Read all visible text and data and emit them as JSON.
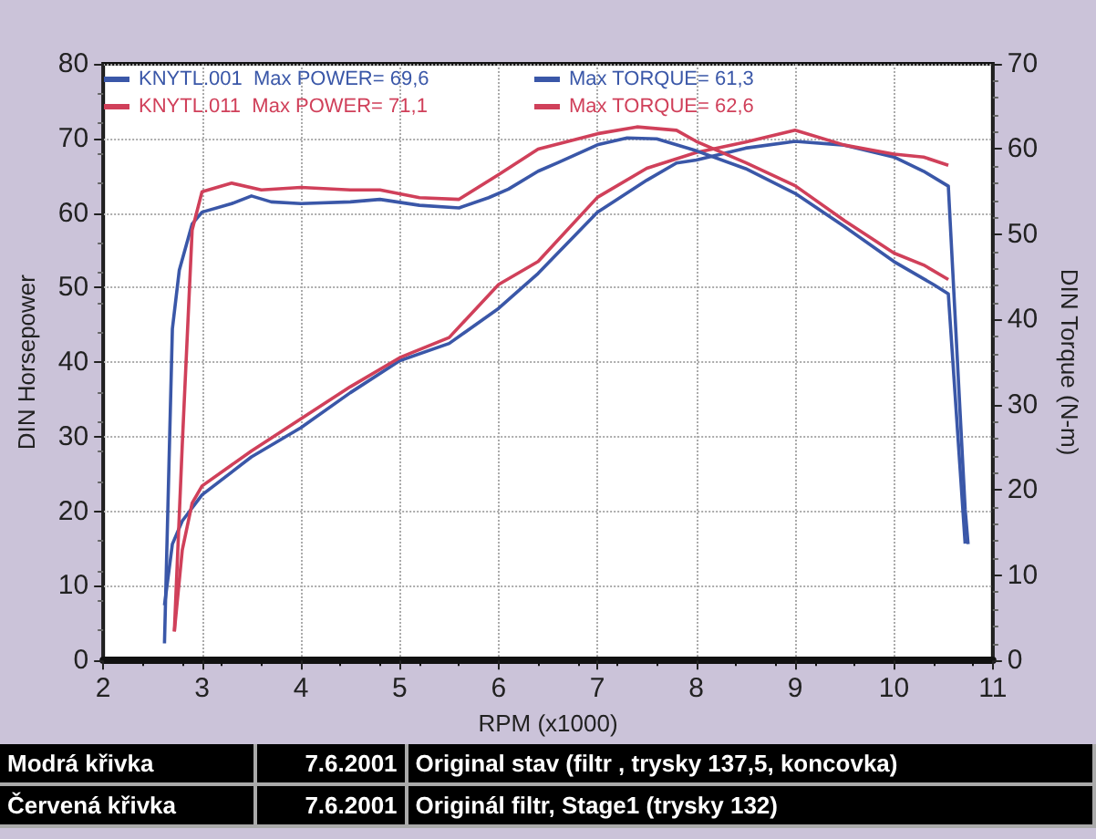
{
  "chart_data": {
    "type": "line",
    "xlabel": "RPM (x1000)",
    "ylabel": "DIN Horsepower",
    "y2label": "DIN Torque (N-m)",
    "xlim": [
      2,
      11
    ],
    "xticks": [
      2,
      3,
      4,
      5,
      6,
      7,
      8,
      9,
      10,
      11
    ],
    "ylim": [
      0,
      80
    ],
    "yticks": [
      0,
      10,
      20,
      30,
      40,
      50,
      60,
      70,
      80
    ],
    "y2lim": [
      0,
      70
    ],
    "y2ticks": [
      0,
      10,
      20,
      30,
      40,
      50,
      60,
      70
    ],
    "grid": true,
    "marker": "none",
    "line_style": "solid",
    "legend": "top",
    "series": [
      {
        "name": "KNYTL.001  Max POWER= 69,6",
        "color": "#3a57a8",
        "x": [
          2.62,
          2.7,
          2.8,
          3.0,
          3.5,
          4.0,
          4.5,
          5.0,
          5.5,
          6.0,
          6.4,
          7.0,
          7.5,
          7.8,
          8.0,
          8.5,
          9.0,
          9.5,
          10.0,
          10.3,
          10.55,
          10.72,
          10.75
        ],
        "values": [
          7.4,
          15.6,
          18.7,
          22.2,
          27.3,
          31.2,
          35.9,
          40.2,
          42.5,
          47.2,
          51.9,
          60.1,
          64.4,
          66.7,
          67.1,
          68.7,
          69.6,
          69.1,
          67.5,
          65.6,
          63.6,
          20.3,
          15.6
        ]
      },
      {
        "name": "KNYTL.011  Max POWER= 71,1",
        "color": "#d0405a",
        "x": [
          2.72,
          2.8,
          2.9,
          3.0,
          3.5,
          4.0,
          4.5,
          5.0,
          5.5,
          6.0,
          6.4,
          7.0,
          7.5,
          8.0,
          8.5,
          9.0,
          9.5,
          10.0,
          10.3,
          10.55
        ],
        "values": [
          3.9,
          14.8,
          21.1,
          23.4,
          28.1,
          32.4,
          36.7,
          40.6,
          43.3,
          50.4,
          53.5,
          62.1,
          66.0,
          68.1,
          69.5,
          71.1,
          69.1,
          67.9,
          67.5,
          66.4
        ]
      },
      {
        "name": "Max TORQUE= 61,3",
        "color": "#3a57a8",
        "axis": "y2",
        "x": [
          2.62,
          2.7,
          2.77,
          2.9,
          3.0,
          3.3,
          3.5,
          3.7,
          4.0,
          4.5,
          4.8,
          5.2,
          5.6,
          5.9,
          6.1,
          6.4,
          6.6,
          7.0,
          7.3,
          7.6,
          8.0,
          8.5,
          9.0,
          9.5,
          10.0,
          10.4,
          10.55,
          10.72
        ],
        "values": [
          2.0,
          38.9,
          45.8,
          51.2,
          52.6,
          53.6,
          54.5,
          53.8,
          53.6,
          53.8,
          54.1,
          53.4,
          53.1,
          54.3,
          55.3,
          57.4,
          58.4,
          60.5,
          61.3,
          61.2,
          59.8,
          57.7,
          54.8,
          50.9,
          46.8,
          44.1,
          43.0,
          13.7
        ]
      },
      {
        "name": "Max TORQUE= 62,6",
        "color": "#d0405a",
        "axis": "y2",
        "x": [
          2.72,
          2.8,
          2.9,
          3.0,
          3.3,
          3.6,
          4.0,
          4.5,
          4.8,
          5.2,
          5.6,
          6.0,
          6.4,
          7.0,
          7.4,
          7.8,
          8.0,
          8.5,
          9.0,
          9.5,
          10.0,
          10.3,
          10.55
        ],
        "values": [
          3.4,
          25.3,
          50.5,
          55.0,
          56.0,
          55.2,
          55.5,
          55.2,
          55.2,
          54.3,
          54.1,
          57.0,
          60.0,
          61.8,
          62.6,
          62.2,
          60.9,
          58.4,
          55.7,
          51.6,
          47.8,
          46.4,
          44.7
        ]
      }
    ],
    "annotations": [
      "Modrá křivka",
      "7.6.2001",
      "Original stav (filtr , trysky 137,5, koncovka)",
      "Červená křivka",
      "7.6.2001",
      "Originál filtr, Stage1 (trysky 132)"
    ]
  }
}
